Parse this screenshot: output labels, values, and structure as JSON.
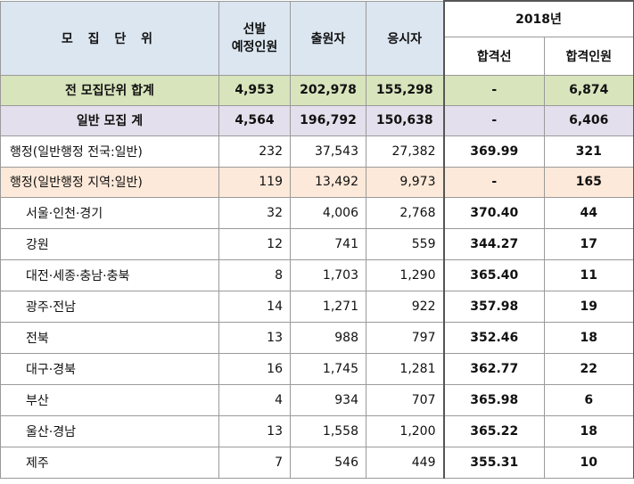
{
  "header": {
    "unit": "모 집 단 위",
    "quota": "선발\n예정인원",
    "applicants": "출원자",
    "examinees": "응시자",
    "year": "2018년",
    "cutoff": "합격선",
    "passers": "합격인원"
  },
  "summary": [
    {
      "unit": "전 모집단위 합계",
      "quota": "4,953",
      "applicants": "202,978",
      "examinees": "155,298",
      "cutoff": "-",
      "passers": "6,874"
    },
    {
      "unit": "일반 모집 계",
      "quota": "4,564",
      "applicants": "196,792",
      "examinees": "150,638",
      "cutoff": "-",
      "passers": "6,406"
    }
  ],
  "national": {
    "unit": "행정(일반행정 전국:일반)",
    "quota": "232",
    "applicants": "37,543",
    "examinees": "27,382",
    "cutoff": "369.99",
    "passers": "321"
  },
  "regional": {
    "unit": "행정(일반행정 지역:일반)",
    "quota": "119",
    "applicants": "13,492",
    "examinees": "9,973",
    "cutoff": "-",
    "passers": "165"
  },
  "regions": [
    {
      "unit": "서울·인천·경기",
      "quota": "32",
      "applicants": "4,006",
      "examinees": "2,768",
      "cutoff": "370.40",
      "passers": "44"
    },
    {
      "unit": "강원",
      "quota": "12",
      "applicants": "741",
      "examinees": "559",
      "cutoff": "344.27",
      "passers": "17"
    },
    {
      "unit": "대전·세종·충남·충북",
      "quota": "8",
      "applicants": "1,703",
      "examinees": "1,290",
      "cutoff": "365.40",
      "passers": "11"
    },
    {
      "unit": "광주·전남",
      "quota": "14",
      "applicants": "1,271",
      "examinees": "922",
      "cutoff": "357.98",
      "passers": "19"
    },
    {
      "unit": "전북",
      "quota": "13",
      "applicants": "988",
      "examinees": "797",
      "cutoff": "352.46",
      "passers": "18"
    },
    {
      "unit": "대구·경북",
      "quota": "16",
      "applicants": "1,745",
      "examinees": "1,281",
      "cutoff": "362.77",
      "passers": "22"
    },
    {
      "unit": "부산",
      "quota": "4",
      "applicants": "934",
      "examinees": "707",
      "cutoff": "365.98",
      "passers": "6"
    },
    {
      "unit": "울산·경남",
      "quota": "13",
      "applicants": "1,558",
      "examinees": "1,200",
      "cutoff": "365.22",
      "passers": "18"
    },
    {
      "unit": "제주",
      "quota": "7",
      "applicants": "546",
      "examinees": "449",
      "cutoff": "355.31",
      "passers": "10"
    }
  ]
}
